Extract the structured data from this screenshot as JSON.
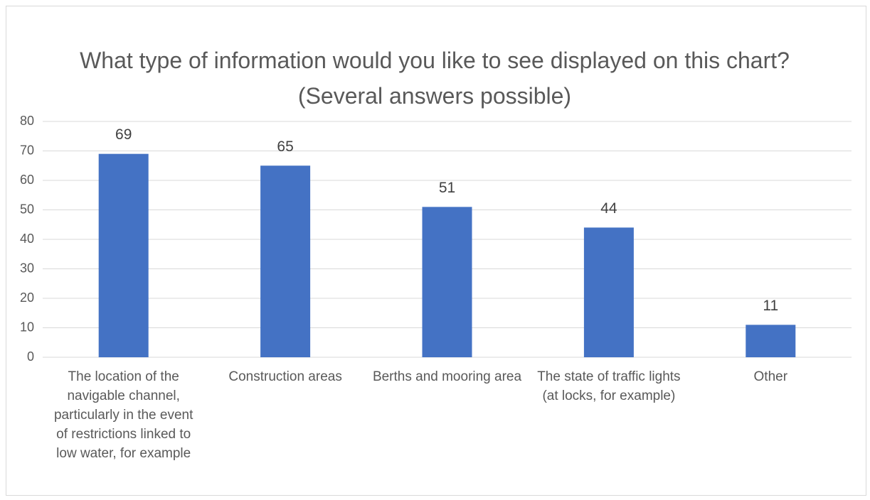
{
  "chart_data": {
    "type": "bar",
    "title": "What type of information would you like to see displayed on this chart? (Several answers possible)",
    "categories": [
      "The location of the navigable channel, particularly in the event of restrictions linked to low water, for example",
      "Construction areas",
      "Berths and mooring area",
      "The state of traffic lights (at locks, for example)",
      "Other"
    ],
    "values": [
      69,
      65,
      51,
      44,
      11
    ],
    "color": "#4472c4",
    "ylim": [
      0,
      80
    ],
    "yticks": [
      0,
      10,
      20,
      30,
      40,
      50,
      60,
      70,
      80
    ],
    "grid": true
  }
}
